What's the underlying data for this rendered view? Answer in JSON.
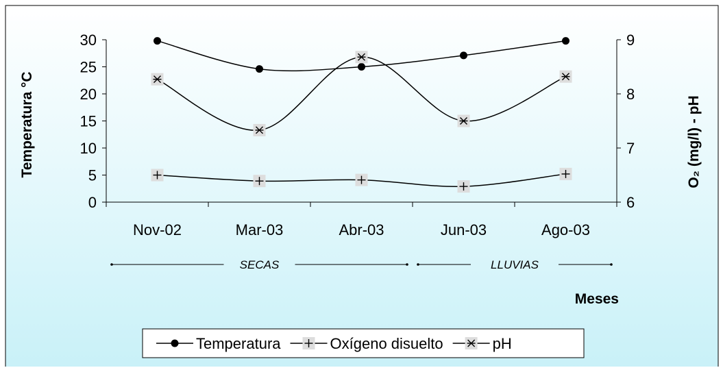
{
  "chart_data": {
    "type": "line",
    "categories": [
      "Nov-02",
      "Mar-03",
      "Abr-03",
      "Jun-03",
      "Ago-03"
    ],
    "xlabel": "Meses",
    "ylabel_left": "Temperatura °C",
    "ylabel_right": "O₂ (mg/l) - pH",
    "ylim_left": [
      0,
      30
    ],
    "yticks_left": [
      "0",
      "5",
      "10",
      "15",
      "20",
      "25",
      "30"
    ],
    "ylim_right": [
      6,
      9
    ],
    "yticks_right": [
      "6",
      "7",
      "8",
      "9"
    ],
    "series": [
      {
        "name": "Temperatura",
        "axis": "left",
        "marker": "circle",
        "values": [
          29.8,
          24.6,
          25.0,
          27.1,
          29.8
        ]
      },
      {
        "name": "Oxígeno disuelto",
        "axis": "left",
        "marker": "plus",
        "values": [
          5.0,
          3.9,
          4.1,
          2.9,
          5.2
        ]
      },
      {
        "name": "pH",
        "axis": "right",
        "marker": "asterisk",
        "values": [
          8.27,
          7.33,
          8.68,
          7.5,
          8.32
        ]
      }
    ],
    "season_labels": [
      {
        "label": "SECAS",
        "from": "Nov-02",
        "to": "Abr-03"
      },
      {
        "label": "LLUVIAS",
        "from": "Jun-03",
        "to": "Ago-03"
      }
    ],
    "legend_position": "bottom-center",
    "grid": false,
    "colors": {
      "background_top": "#ffffff",
      "background_bottom": "#c9f1f8",
      "line": "#000000",
      "marker_box": "#dddddd"
    }
  }
}
